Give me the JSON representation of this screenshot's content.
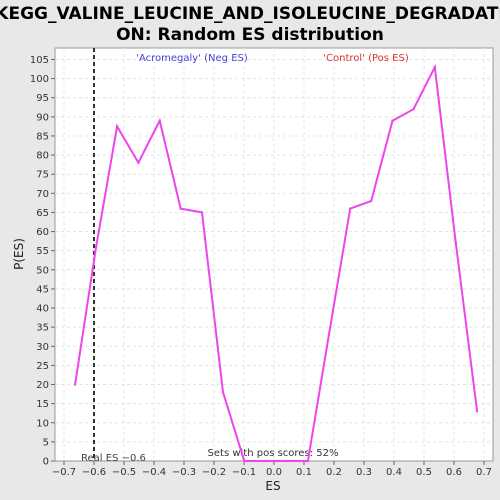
{
  "chart_data": {
    "type": "line",
    "title_line1": "KEGG_VALINE_LEUCINE_AND_ISOLEUCINE_DEGRADATI",
    "title_line2": "ON: Random ES distribution",
    "xlabel": "ES",
    "ylabel": "P(ES)",
    "xlim": [
      -0.73,
      0.73
    ],
    "ylim": [
      0,
      108
    ],
    "x_ticks": [
      -0.7,
      -0.6,
      -0.5,
      -0.4,
      -0.3,
      -0.2,
      -0.1,
      0.0,
      0.1,
      0.2,
      0.3,
      0.4,
      0.5,
      0.6,
      0.7
    ],
    "x_tick_labels": [
      "−0.7",
      "−0.6",
      "−0.5",
      "−0.4",
      "−0.3",
      "−0.2",
      "−0.1",
      "0.0",
      "0.1",
      "0.2",
      "0.3",
      "0.4",
      "0.5",
      "0.6",
      "0.7"
    ],
    "y_ticks": [
      0,
      5,
      10,
      15,
      20,
      25,
      30,
      35,
      40,
      45,
      50,
      55,
      60,
      65,
      70,
      75,
      80,
      85,
      90,
      95,
      100,
      105
    ],
    "grid": true,
    "line_color": "#ee44ee",
    "x": [
      -0.663,
      -0.593,
      -0.523,
      -0.452,
      -0.381,
      -0.311,
      -0.24,
      -0.17,
      -0.099,
      -0.028,
      0.042,
      0.113,
      0.183,
      0.254,
      0.324,
      0.395,
      0.465,
      0.536,
      0.606,
      0.677
    ],
    "y": [
      20,
      56,
      87.5,
      78,
      89,
      66,
      65,
      18,
      0,
      0,
      0,
      0,
      33,
      66,
      68,
      89,
      92,
      103,
      57,
      13
    ],
    "real_es": -0.6,
    "annotations": {
      "neg_label": "'Acromegaly' (Neg ES)",
      "pos_label": "'Control' (Pos ES)",
      "real_es_label": "Real ES −0.6",
      "pos_scores_label": "Sets with pos scores: 52%",
      "neg_color": "#4444cc",
      "pos_color": "#dd3333"
    }
  }
}
